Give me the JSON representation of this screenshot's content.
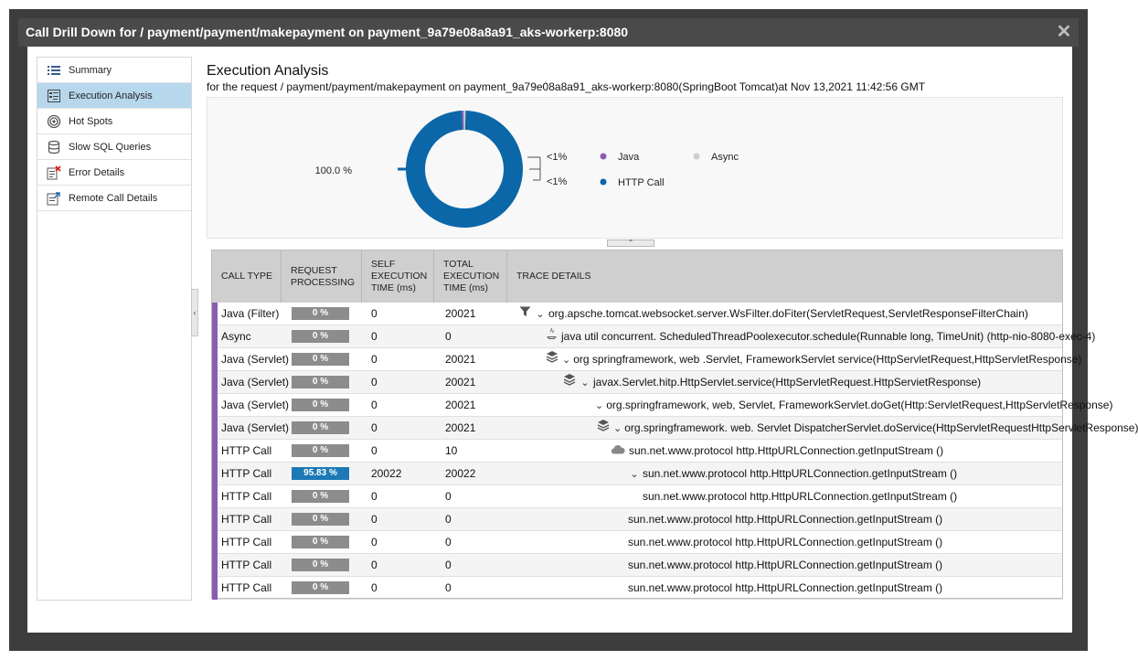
{
  "window": {
    "title": "Call Drill Down for / payment/payment/makepayment on payment_9a79e08a8a91_aks-workerp:8080",
    "close_glyph": "✕"
  },
  "sidebar": {
    "items": [
      {
        "label": "Summary",
        "icon": "list-icon",
        "active": false
      },
      {
        "label": "Execution Analysis",
        "icon": "execution-analysis-icon",
        "active": true
      },
      {
        "label": "Hot Spots",
        "icon": "target-icon",
        "active": false
      },
      {
        "label": "Slow SQL Queries",
        "icon": "database-icon",
        "active": false
      },
      {
        "label": "Error Details",
        "icon": "error-doc-icon",
        "active": false
      },
      {
        "label": "Remote Call Details",
        "icon": "remote-call-icon",
        "active": false
      }
    ]
  },
  "main": {
    "title": "Execution Analysis",
    "subtitle": "for the request / payment/payment/makepayment on payment_9a79e08a8a91_aks-workerp:8080(SpringBoot Tomcat)at Nov 13,2021 11:42:56 GMT"
  },
  "chart_data": {
    "type": "pie",
    "slices": [
      {
        "name": "HTTP Call",
        "value": 100.0,
        "label": "100.0 %",
        "color": "#0b67a8"
      },
      {
        "name": "Java",
        "value": 0.5,
        "label": "<1%",
        "color": "#8b5db1"
      },
      {
        "name": "Async",
        "value": 0.5,
        "label": "<1%",
        "color": "#cccccc"
      }
    ],
    "legend": [
      "Java",
      "Async",
      "HTTP Call"
    ],
    "legend_position": "right"
  },
  "table": {
    "headers": [
      "CALL TYPE",
      "REQUEST PROCESSING",
      "SELF EXECUTION TIME (ms)",
      "TOTAL EXECUTION TIME (ms)",
      "TRACE DETAILS"
    ],
    "rows": [
      {
        "type": "Java (Filter)",
        "pct": "0 %",
        "pct_value": 0,
        "self": "0",
        "total": "20021",
        "icon": "filter-icon",
        "chev": true,
        "trace": "org.apsche.tomcat.websocket.server.WsFilter.doFiter(ServletRequest,ServletResponseFilterChain)"
      },
      {
        "type": "Async",
        "pct": "0 %",
        "pct_value": 0,
        "self": "0",
        "total": "0",
        "icon": "java-icon",
        "chev": false,
        "trace": "java util concurrent. ScheduledThreadPoolexecutor.schedule(Runnable long, TimeUnit) (http-nio-8080-exec-4)"
      },
      {
        "type": "Java (Servlet)",
        "pct": "0 %",
        "pct_value": 0,
        "self": "0",
        "total": "20021",
        "icon": "layers-icon",
        "chev": true,
        "trace": "org springframework, web .Servlet, FrameworkServlet service(HttpServletRequest,HttpServletResponse)"
      },
      {
        "type": "Java (Servlet)",
        "pct": "0 %",
        "pct_value": 0,
        "self": "0",
        "total": "20021",
        "icon": "layers-icon",
        "chev": true,
        "trace": "javax.Servlet.hitp.HttpServlet.service(HttpServletRequest.HttpServietResponse)"
      },
      {
        "type": "Java (Servlet)",
        "pct": "0 %",
        "pct_value": 0,
        "self": "0",
        "total": "20021",
        "icon": "",
        "chev": true,
        "trace": "org.springframework, web, Servlet, FrameworkServlet.doGet(Http:ServletRequest,HttpServletResponse)"
      },
      {
        "type": "Java (Servlet)",
        "pct": "0 %",
        "pct_value": 0,
        "self": "0",
        "total": "20021",
        "icon": "layers-icon",
        "chev": true,
        "trace": "org.springframework. web. Servlet DispatcherServlet.doService(HttpServletRequestHttpServletResponse)"
      },
      {
        "type": "HTTP Call",
        "pct": "0 %",
        "pct_value": 0,
        "self": "0",
        "total": "10",
        "icon": "cloud-icon",
        "chev": false,
        "trace": "sun.net.www.protocol http.HttpURLConnection.getInputStream ()"
      },
      {
        "type": "HTTP Call",
        "pct": "95.83 %",
        "pct_value": 95.83,
        "self": "20022",
        "total": "20022",
        "icon": "",
        "chev": true,
        "trace": "sun.net.www.protocol http.HttpURLConnection.getInputStream ()"
      },
      {
        "type": "HTTP Call",
        "pct": "0 %",
        "pct_value": 0,
        "self": "0",
        "total": "0",
        "icon": "",
        "chev": false,
        "trace": "sun.net.www.protocol http.HttpURLConnection.getInputStream ()"
      },
      {
        "type": "HTTP Call",
        "pct": "0 %",
        "pct_value": 0,
        "self": "0",
        "total": "0",
        "icon": "",
        "chev": false,
        "trace": "sun.net.www.protocol http.HttpURLConnection.getInputStream ()"
      },
      {
        "type": "HTTP Call",
        "pct": "0 %",
        "pct_value": 0,
        "self": "0",
        "total": "0",
        "icon": "",
        "chev": false,
        "trace": "sun.net.www.protocol http.HttpURLConnection.getInputStream ()"
      },
      {
        "type": "HTTP Call",
        "pct": "0 %",
        "pct_value": 0,
        "self": "0",
        "total": "0",
        "icon": "",
        "chev": false,
        "trace": "sun.net.www.protocol http.HttpURLConnection.getInputStream ()"
      },
      {
        "type": "HTTP Call",
        "pct": "0 %",
        "pct_value": 0,
        "self": "0",
        "total": "0",
        "icon": "",
        "chev": false,
        "trace": "sun.net.www.protocol http.HttpURLConnection.getInputStream ()"
      }
    ]
  }
}
